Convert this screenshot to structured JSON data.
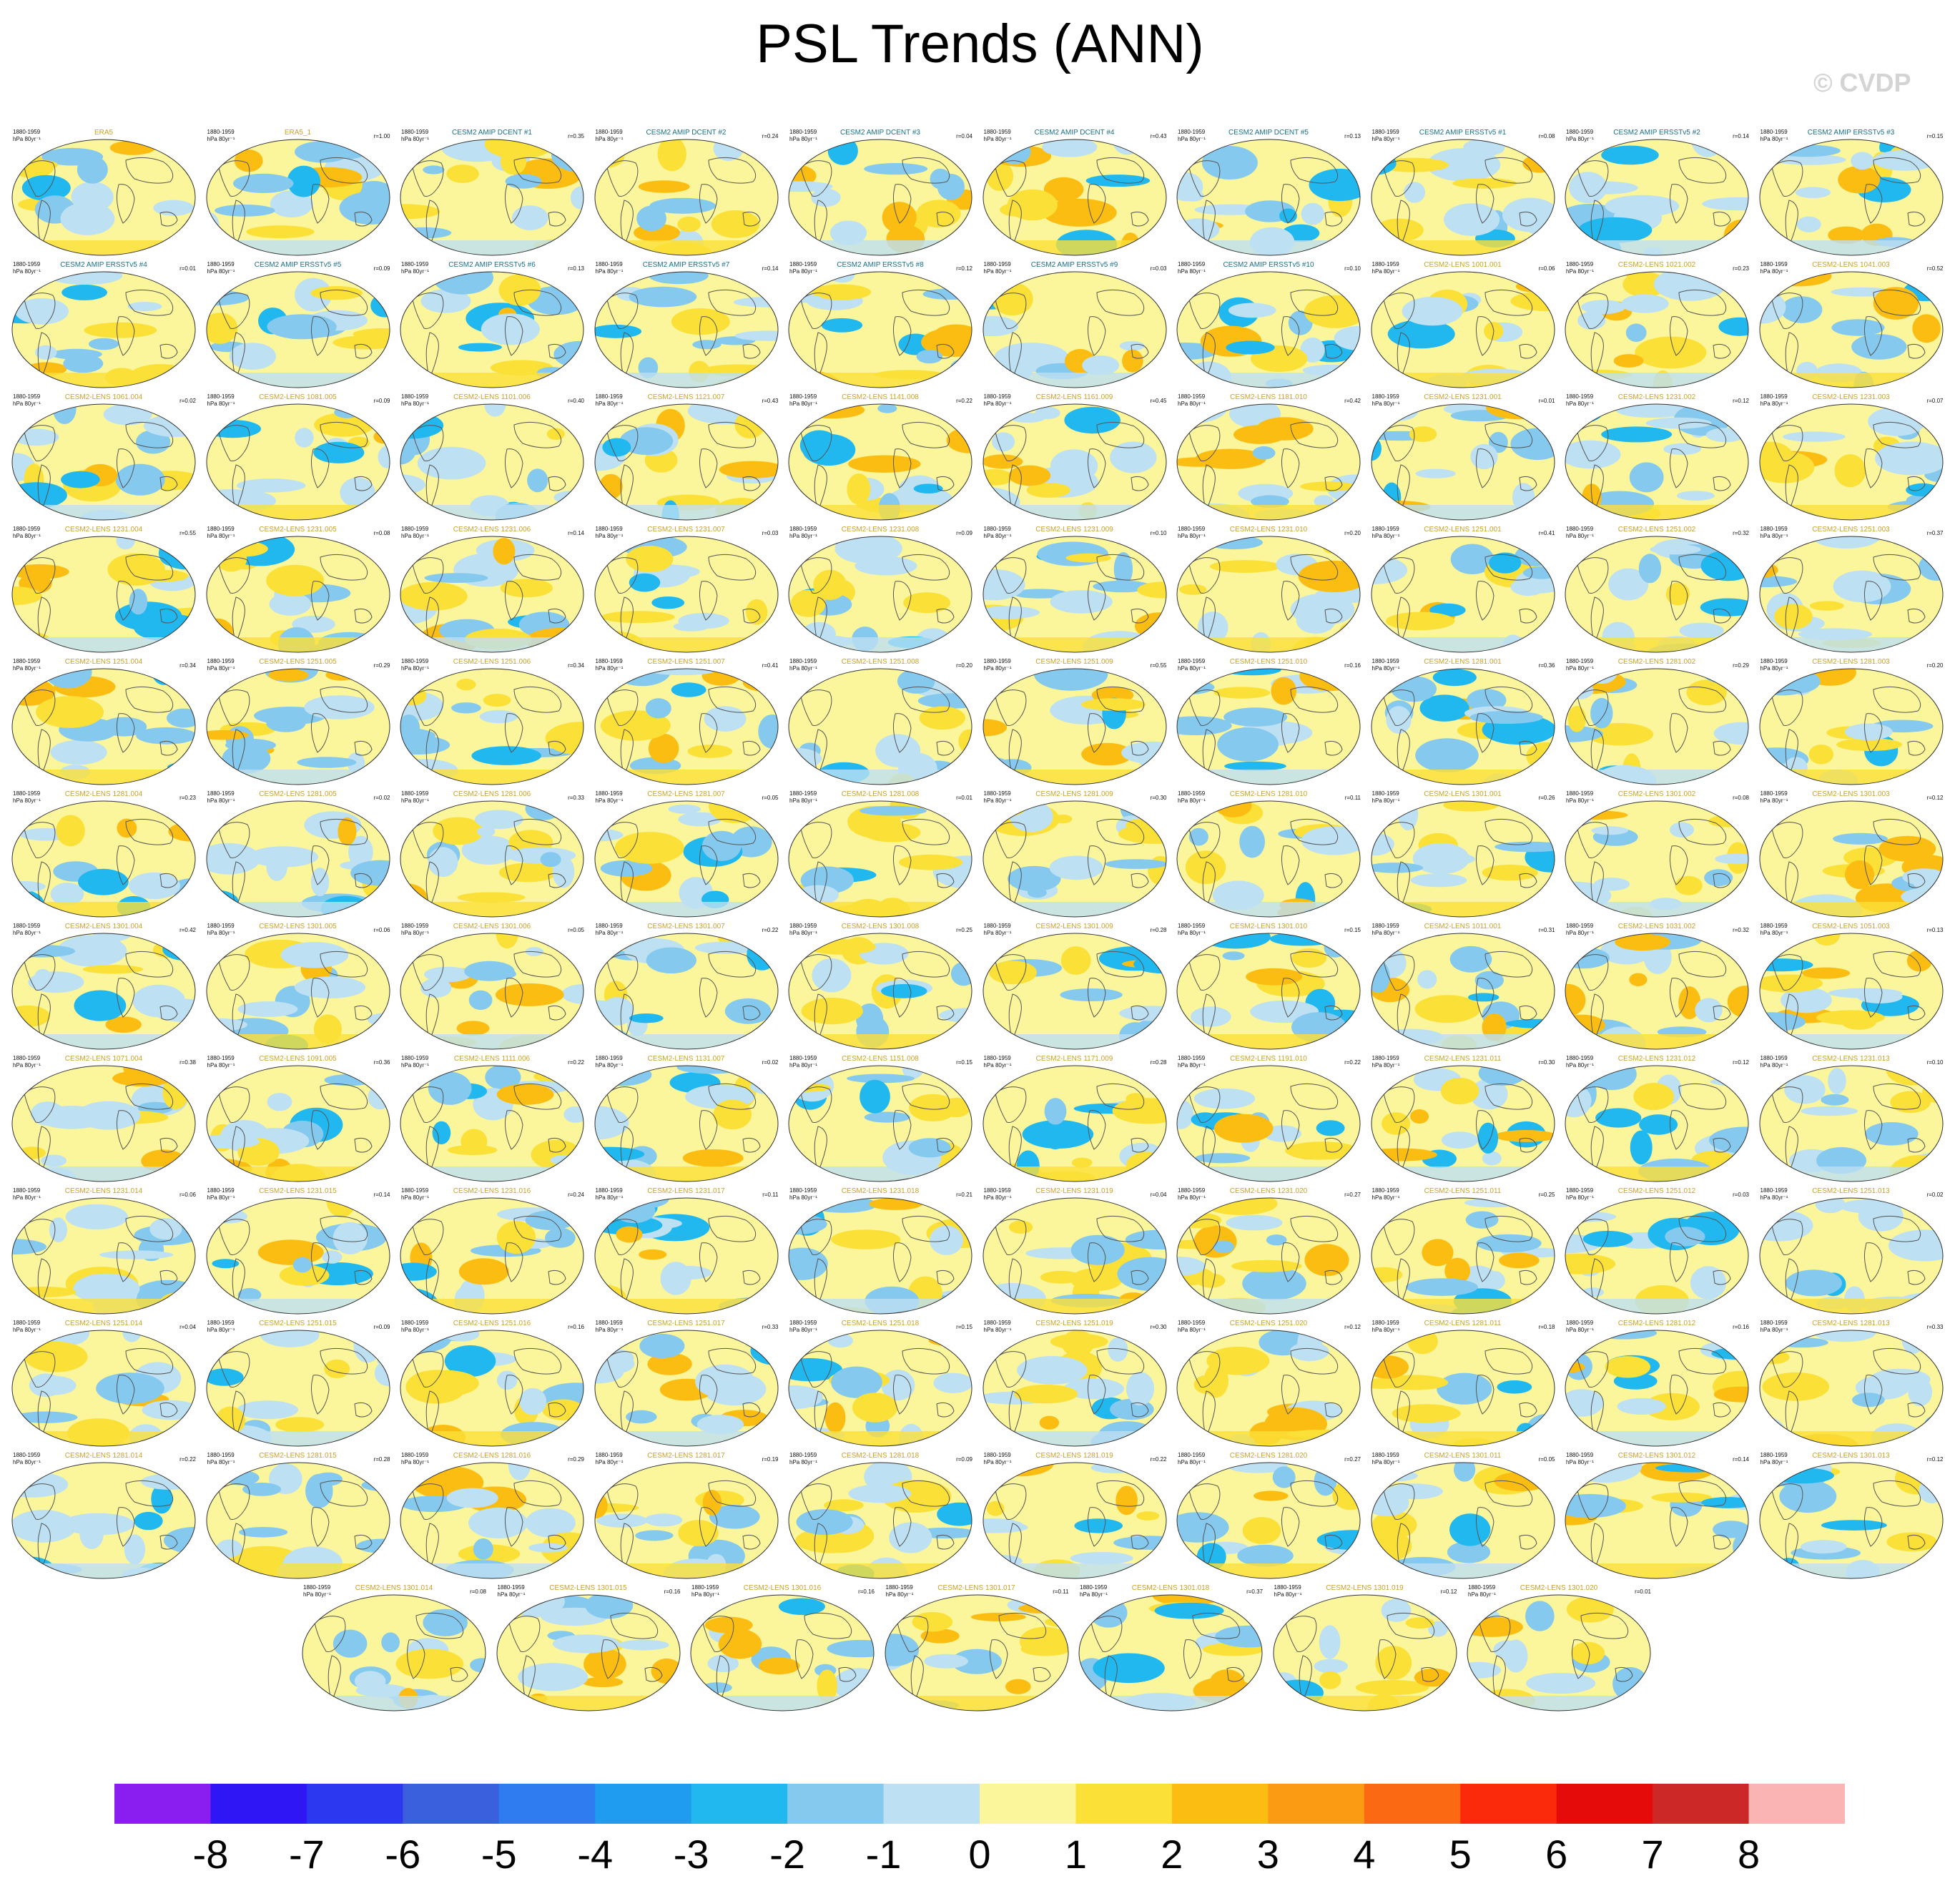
{
  "title": "PSL Trends (ANN)",
  "watermark": "© CVDP",
  "colorbar": {
    "colors": [
      "#8a1ef0",
      "#2f17f5",
      "#2c37f0",
      "#3a60dd",
      "#2f7cf0",
      "#1f9bf0",
      "#21b8f0",
      "#86c9ee",
      "#bde0f2",
      "#fbf69c",
      "#fbe038",
      "#fbbd12",
      "#fb9a13",
      "#fb6a13",
      "#fb2a0a",
      "#e60b0b",
      "#cd2828",
      "#fbb4b4"
    ],
    "labels": [
      "-8",
      "-7",
      "-6",
      "-5",
      "-4",
      "-3",
      "-2",
      "-1",
      "0",
      "1",
      "2",
      "3",
      "4",
      "5",
      "6",
      "7",
      "8"
    ]
  },
  "chart_data": {
    "type": "heatmap",
    "title": "PSL Trends (ANN)",
    "period": "1880-1959",
    "units": "hPa 80yr⁻¹",
    "contour_levels": [
      -8,
      -7,
      -6,
      -5,
      -4,
      -3,
      -2,
      -1,
      0,
      1,
      2,
      3,
      4,
      5,
      6,
      7,
      8
    ],
    "panels": [
      {
        "title": "ERA5",
        "r": ""
      },
      {
        "title": "ERA5_1",
        "r": "r=1.00"
      },
      {
        "title": "CESM2 AMIP DCENT #1",
        "r": "r=0.35"
      },
      {
        "title": "CESM2 AMIP DCENT #2",
        "r": "r=0.24"
      },
      {
        "title": "CESM2 AMIP DCENT #3",
        "r": "r=0.04"
      },
      {
        "title": "CESM2 AMIP DCENT #4",
        "r": "r=0.43"
      },
      {
        "title": "CESM2 AMIP DCENT #5",
        "r": "r=0.13"
      },
      {
        "title": "CESM2 AMIP ERSSTv5 #1",
        "r": "r=0.08"
      },
      {
        "title": "CESM2 AMIP ERSSTv5 #2",
        "r": "r=0.14"
      },
      {
        "title": "CESM2 AMIP ERSSTv5 #3",
        "r": "r=0.15"
      },
      {
        "title": "CESM2 AMIP ERSSTv5 #4",
        "r": "r=0.01"
      },
      {
        "title": "CESM2 AMIP ERSSTv5 #5",
        "r": "r=0.09"
      },
      {
        "title": "CESM2 AMIP ERSSTv5 #6",
        "r": "r=0.13"
      },
      {
        "title": "CESM2 AMIP ERSSTv5 #7",
        "r": "r=0.14"
      },
      {
        "title": "CESM2 AMIP ERSSTv5 #8",
        "r": "r=0.12"
      },
      {
        "title": "CESM2 AMIP ERSSTv5 #9",
        "r": "r=0.03"
      },
      {
        "title": "CESM2 AMIP ERSSTv5 #10",
        "r": "r=0.10"
      },
      {
        "title": "CESM2-LENS 1001.001",
        "r": "r=0.06"
      },
      {
        "title": "CESM2-LENS 1021.002",
        "r": "r=0.23"
      },
      {
        "title": "CESM2-LENS 1041.003",
        "r": "r=0.52"
      },
      {
        "title": "CESM2-LENS 1061.004",
        "r": "r=0.02"
      },
      {
        "title": "CESM2-LENS 1081.005",
        "r": "r=0.09"
      },
      {
        "title": "CESM2-LENS 1101.006",
        "r": "r=0.40"
      },
      {
        "title": "CESM2-LENS 1121.007",
        "r": "r=0.43"
      },
      {
        "title": "CESM2-LENS 1141.008",
        "r": "r=0.22"
      },
      {
        "title": "CESM2-LENS 1161.009",
        "r": "r=0.45"
      },
      {
        "title": "CESM2-LENS 1181.010",
        "r": "r=0.42"
      },
      {
        "title": "CESM2-LENS 1231.001",
        "r": "r=0.01"
      },
      {
        "title": "CESM2-LENS 1231.002",
        "r": "r=0.12"
      },
      {
        "title": "CESM2-LENS 1231.003",
        "r": "r=0.07"
      },
      {
        "title": "CESM2-LENS 1231.004",
        "r": "r=0.55"
      },
      {
        "title": "CESM2-LENS 1231.005",
        "r": "r=0.08"
      },
      {
        "title": "CESM2-LENS 1231.006",
        "r": "r=0.14"
      },
      {
        "title": "CESM2-LENS 1231.007",
        "r": "r=0.03"
      },
      {
        "title": "CESM2-LENS 1231.008",
        "r": "r=0.09"
      },
      {
        "title": "CESM2-LENS 1231.009",
        "r": "r=0.10"
      },
      {
        "title": "CESM2-LENS 1231.010",
        "r": "r=0.20"
      },
      {
        "title": "CESM2-LENS 1251.001",
        "r": "r=0.41"
      },
      {
        "title": "CESM2-LENS 1251.002",
        "r": "r=0.32"
      },
      {
        "title": "CESM2-LENS 1251.003",
        "r": "r=0.37"
      },
      {
        "title": "CESM2-LENS 1251.004",
        "r": "r=0.34"
      },
      {
        "title": "CESM2-LENS 1251.005",
        "r": "r=0.29"
      },
      {
        "title": "CESM2-LENS 1251.006",
        "r": "r=0.34"
      },
      {
        "title": "CESM2-LENS 1251.007",
        "r": "r=0.41"
      },
      {
        "title": "CESM2-LENS 1251.008",
        "r": "r=0.20"
      },
      {
        "title": "CESM2-LENS 1251.009",
        "r": "r=0.55"
      },
      {
        "title": "CESM2-LENS 1251.010",
        "r": "r=0.16"
      },
      {
        "title": "CESM2-LENS 1281.001",
        "r": "r=0.36"
      },
      {
        "title": "CESM2-LENS 1281.002",
        "r": "r=0.29"
      },
      {
        "title": "CESM2-LENS 1281.003",
        "r": "r=0.20"
      },
      {
        "title": "CESM2-LENS 1281.004",
        "r": "r=0.23"
      },
      {
        "title": "CESM2-LENS 1281.005",
        "r": "r=0.02"
      },
      {
        "title": "CESM2-LENS 1281.006",
        "r": "r=0.33"
      },
      {
        "title": "CESM2-LENS 1281.007",
        "r": "r=0.05"
      },
      {
        "title": "CESM2-LENS 1281.008",
        "r": "r=0.01"
      },
      {
        "title": "CESM2-LENS 1281.009",
        "r": "r=0.30"
      },
      {
        "title": "CESM2-LENS 1281.010",
        "r": "r=0.11"
      },
      {
        "title": "CESM2-LENS 1301.001",
        "r": "r=0.26"
      },
      {
        "title": "CESM2-LENS 1301.002",
        "r": "r=0.08"
      },
      {
        "title": "CESM2-LENS 1301.003",
        "r": "r=0.12"
      },
      {
        "title": "CESM2-LENS 1301.004",
        "r": "r=0.42"
      },
      {
        "title": "CESM2-LENS 1301.005",
        "r": "r=0.06"
      },
      {
        "title": "CESM2-LENS 1301.006",
        "r": "r=0.05"
      },
      {
        "title": "CESM2-LENS 1301.007",
        "r": "r=0.22"
      },
      {
        "title": "CESM2-LENS 1301.008",
        "r": "r=0.25"
      },
      {
        "title": "CESM2-LENS 1301.009",
        "r": "r=0.28"
      },
      {
        "title": "CESM2-LENS 1301.010",
        "r": "r=0.15"
      },
      {
        "title": "CESM2-LENS 1011.001",
        "r": "r=0.31"
      },
      {
        "title": "CESM2-LENS 1031.002",
        "r": "r=0.32"
      },
      {
        "title": "CESM2-LENS 1051.003",
        "r": "r=0.13"
      },
      {
        "title": "CESM2-LENS 1071.004",
        "r": "r=0.38"
      },
      {
        "title": "CESM2-LENS 1091.005",
        "r": "r=0.36"
      },
      {
        "title": "CESM2-LENS 1111.006",
        "r": "r=0.22"
      },
      {
        "title": "CESM2-LENS 1131.007",
        "r": "r=0.02"
      },
      {
        "title": "CESM2-LENS 1151.008",
        "r": "r=0.15"
      },
      {
        "title": "CESM2-LENS 1171.009",
        "r": "r=0.28"
      },
      {
        "title": "CESM2-LENS 1191.010",
        "r": "r=0.22"
      },
      {
        "title": "CESM2-LENS 1231.011",
        "r": "r=0.30"
      },
      {
        "title": "CESM2-LENS 1231.012",
        "r": "r=0.12"
      },
      {
        "title": "CESM2-LENS 1231.013",
        "r": "r=0.10"
      },
      {
        "title": "CESM2-LENS 1231.014",
        "r": "r=0.06"
      },
      {
        "title": "CESM2-LENS 1231.015",
        "r": "r=0.14"
      },
      {
        "title": "CESM2-LENS 1231.016",
        "r": "r=0.24"
      },
      {
        "title": "CESM2-LENS 1231.017",
        "r": "r=0.11"
      },
      {
        "title": "CESM2-LENS 1231.018",
        "r": "r=0.21"
      },
      {
        "title": "CESM2-LENS 1231.019",
        "r": "r=0.04"
      },
      {
        "title": "CESM2-LENS 1231.020",
        "r": "r=0.27"
      },
      {
        "title": "CESM2-LENS 1251.011",
        "r": "r=0.25"
      },
      {
        "title": "CESM2-LENS 1251.012",
        "r": "r=0.03"
      },
      {
        "title": "CESM2-LENS 1251.013",
        "r": "r=0.02"
      },
      {
        "title": "CESM2-LENS 1251.014",
        "r": "r=0.04"
      },
      {
        "title": "CESM2-LENS 1251.015",
        "r": "r=0.09"
      },
      {
        "title": "CESM2-LENS 1251.016",
        "r": "r=0.16"
      },
      {
        "title": "CESM2-LENS 1251.017",
        "r": "r=0.33"
      },
      {
        "title": "CESM2-LENS 1251.018",
        "r": "r=0.15"
      },
      {
        "title": "CESM2-LENS 1251.019",
        "r": "r=0.30"
      },
      {
        "title": "CESM2-LENS 1251.020",
        "r": "r=0.12"
      },
      {
        "title": "CESM2-LENS 1281.011",
        "r": "r=0.18"
      },
      {
        "title": "CESM2-LENS 1281.012",
        "r": "r=0.16"
      },
      {
        "title": "CESM2-LENS 1281.013",
        "r": "r=0.33"
      },
      {
        "title": "CESM2-LENS 1281.014",
        "r": "r=0.22"
      },
      {
        "title": "CESM2-LENS 1281.015",
        "r": "r=0.28"
      },
      {
        "title": "CESM2-LENS 1281.016",
        "r": "r=0.29"
      },
      {
        "title": "CESM2-LENS 1281.017",
        "r": "r=0.19"
      },
      {
        "title": "CESM2-LENS 1281.018",
        "r": "r=0.09"
      },
      {
        "title": "CESM2-LENS 1281.019",
        "r": "r=0.22"
      },
      {
        "title": "CESM2-LENS 1281.020",
        "r": "r=0.27"
      },
      {
        "title": "CESM2-LENS 1301.011",
        "r": "r=0.05"
      },
      {
        "title": "CESM2-LENS 1301.012",
        "r": "r=0.14"
      },
      {
        "title": "CESM2-LENS 1301.013",
        "r": "r=0.12"
      },
      {
        "title": "CESM2-LENS 1301.014",
        "r": "r=0.08"
      },
      {
        "title": "CESM2-LENS 1301.015",
        "r": "r=0.16"
      },
      {
        "title": "CESM2-LENS 1301.016",
        "r": "r=0.16"
      },
      {
        "title": "CESM2-LENS 1301.017",
        "r": "r=0.11"
      },
      {
        "title": "CESM2-LENS 1301.018",
        "r": "r=0.37"
      },
      {
        "title": "CESM2-LENS 1301.019",
        "r": "r=0.12"
      },
      {
        "title": "CESM2-LENS 1301.020",
        "r": "r=0.01"
      }
    ]
  }
}
